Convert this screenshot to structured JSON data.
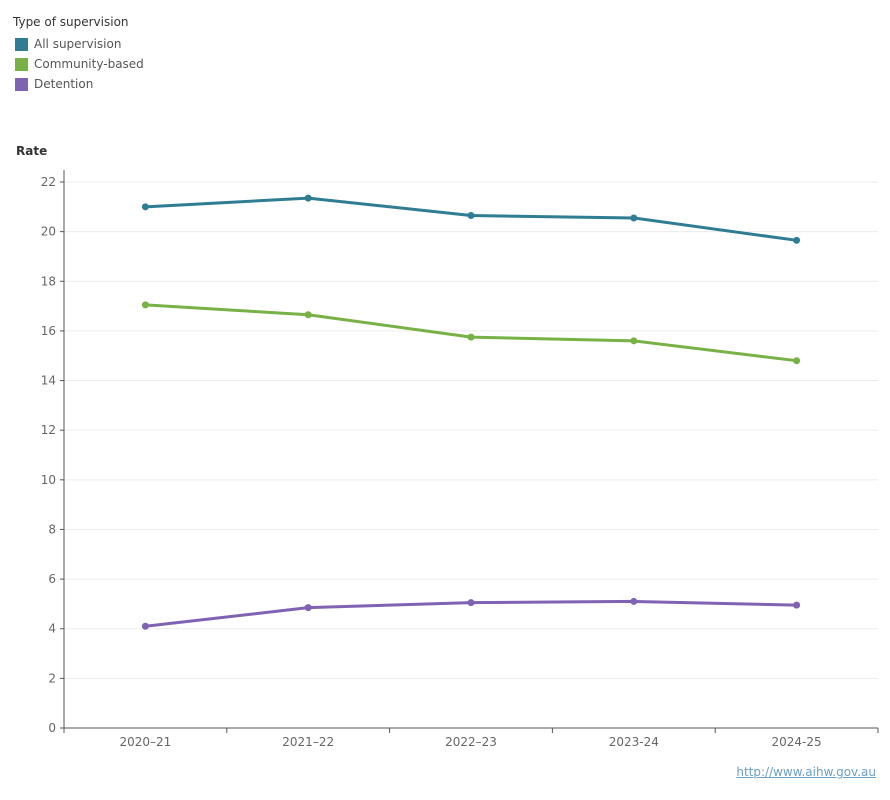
{
  "chart_data": {
    "type": "line",
    "categories": [
      "2020–21",
      "2021–22",
      "2022–23",
      "2023-24",
      "2024-25"
    ],
    "series": [
      {
        "name": "All supervision",
        "color": "#2e7d93",
        "values": [
          21.0,
          21.35,
          20.65,
          20.55,
          19.65
        ]
      },
      {
        "name": "Community-based",
        "color": "#78b146",
        "values": [
          17.05,
          16.65,
          15.75,
          15.6,
          14.8
        ]
      },
      {
        "name": "Detention",
        "color": "#7f63b2",
        "values": [
          4.1,
          4.85,
          5.05,
          5.1,
          4.95
        ]
      }
    ],
    "legend_title": "Type of supervision",
    "legend_position": "top-left",
    "ylabel": "Rate",
    "xlabel": "",
    "ylim": [
      0,
      22.5
    ],
    "yticks": [
      0,
      2,
      4,
      6,
      8,
      10,
      12,
      14,
      16,
      18,
      20,
      22
    ],
    "grid": true
  },
  "footer": {
    "link_text": "http://www.aihw.gov.au"
  }
}
